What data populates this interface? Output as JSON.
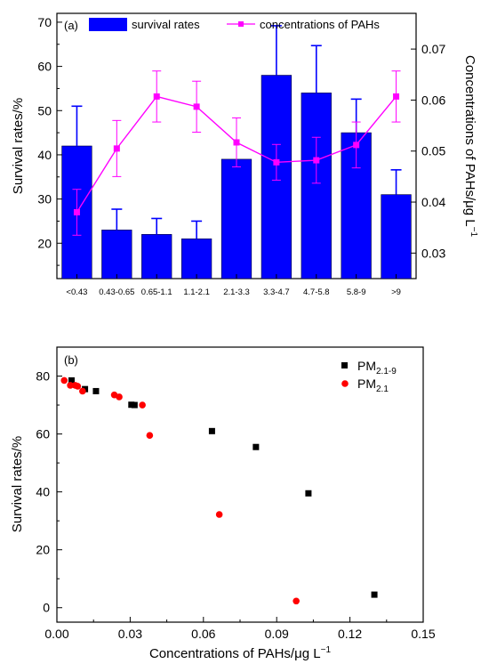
{
  "chart_data": [
    {
      "type": "bar",
      "panel_label": "(a)",
      "categories": [
        "<0.43",
        "0.43-0.65",
        "0.65-1.1",
        "1.1-2.1",
        "2.1-3.3",
        "3.3-4.7",
        "4.7-5.8",
        "5.8-9",
        ">9"
      ],
      "series": [
        {
          "name": "survival rates",
          "kind": "bar",
          "axis": "left",
          "color": "#0000ff",
          "values": [
            42,
            23,
            22,
            21,
            39,
            58,
            54,
            45,
            31
          ],
          "error": [
            9,
            4.7,
            3.6,
            4,
            0,
            11.2,
            10.7,
            7.6,
            5.6
          ]
        },
        {
          "name": "concentrations of PAHs",
          "kind": "line",
          "axis": "right",
          "color": "#ff00ff",
          "marker": "square",
          "values": [
            0.038,
            0.0505,
            0.0607,
            0.0587,
            0.0517,
            0.0478,
            0.0482,
            0.0512,
            0.0607
          ],
          "error": [
            0.0045,
            0.0055,
            0.005,
            0.005,
            0.0048,
            0.0035,
            0.0045,
            0.0045,
            0.005
          ]
        }
      ],
      "ylabel_left": "Survival rates/%",
      "ylim_left": [
        12,
        72
      ],
      "yticks_left": [
        "20",
        "30",
        "40",
        "50",
        "60",
        "70"
      ],
      "ylabel_right": "Concentrations of PAHs/μg L",
      "ylabel_right_sup": "−1",
      "ylim_right": [
        0.025,
        0.077
      ],
      "yticks_right": [
        "0.03",
        "0.04",
        "0.05",
        "0.06",
        "0.07"
      ],
      "legend_position": "top",
      "grid": false
    },
    {
      "type": "scatter",
      "panel_label": "(b)",
      "series": [
        {
          "name": "PM",
          "sub": "2.1-9",
          "color": "#000000",
          "marker": "square",
          "points": [
            [
              0.006,
              78.5
            ],
            [
              0.0115,
              75.5
            ],
            [
              0.016,
              74.8
            ],
            [
              0.0305,
              70.1
            ],
            [
              0.0318,
              70.0
            ],
            [
              0.0635,
              61.0
            ],
            [
              0.0815,
              55.5
            ],
            [
              0.103,
              39.5
            ],
            [
              0.13,
              4.5
            ]
          ]
        },
        {
          "name": "PM",
          "sub": "2.1",
          "color": "#ff0000",
          "marker": "circle",
          "points": [
            [
              0.003,
              78.5
            ],
            [
              0.0055,
              76.8
            ],
            [
              0.0075,
              76.8
            ],
            [
              0.0085,
              76.5
            ],
            [
              0.0105,
              74.8
            ],
            [
              0.0235,
              73.5
            ],
            [
              0.0255,
              72.8
            ],
            [
              0.035,
              70.0
            ],
            [
              0.038,
              59.5
            ],
            [
              0.0665,
              32.2
            ],
            [
              0.098,
              2.3
            ]
          ]
        }
      ],
      "xlabel": "Concentrations of PAHs/μg L",
      "xlabel_sup": "−1",
      "ylabel": "Survival rates/%",
      "xlim": [
        0,
        0.15
      ],
      "ylim": [
        -5,
        90
      ],
      "xticks": [
        "0.00",
        "0.03",
        "0.06",
        "0.09",
        "0.12",
        "0.15"
      ],
      "yticks": [
        "0",
        "20",
        "40",
        "60",
        "80"
      ],
      "legend_position": "top-right",
      "grid": false
    }
  ]
}
